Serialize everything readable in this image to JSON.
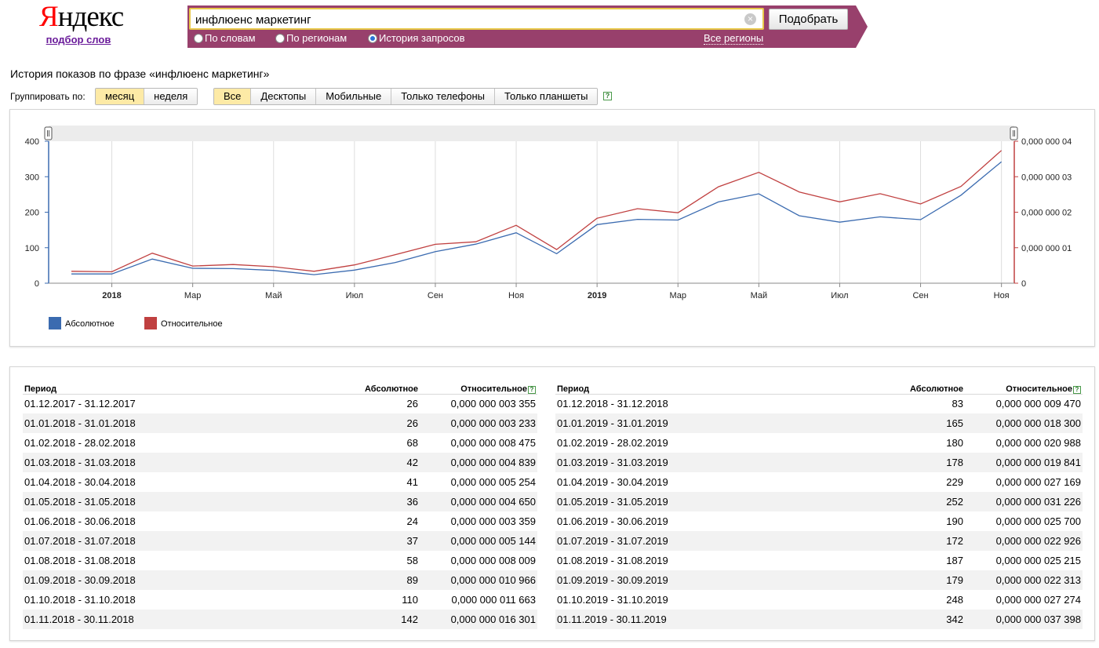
{
  "logo": {
    "brand_first": "Я",
    "brand_rest": "ндекс",
    "subtitle": "подбор слов"
  },
  "search": {
    "value": "инфлюенс маркетинг",
    "submit_label": "Подобрать",
    "clear_icon": "clear-icon",
    "modes": [
      {
        "label": "По словам",
        "selected": false
      },
      {
        "label": "По регионам",
        "selected": false
      },
      {
        "label": "История запросов",
        "selected": true
      }
    ],
    "regions_link": "Все регионы"
  },
  "page_title": "История показов по фразе «инфлюенс маркетинг»",
  "grouping": {
    "label": "Группировать по:",
    "options": [
      "месяц",
      "неделя"
    ],
    "selected": "месяц"
  },
  "devices": {
    "options": [
      "Все",
      "Десктопы",
      "Мобильные",
      "Только телефоны",
      "Только планшеты"
    ],
    "selected": "Все",
    "help": "?"
  },
  "colors": {
    "absolute": "#3b6bb0",
    "relative": "#c04040",
    "brand_band": "#98406c",
    "active_button": "#fdeaa6"
  },
  "chart_data": {
    "type": "line",
    "x": [
      "12.2017",
      "01.2018",
      "02.2018",
      "03.2018",
      "04.2018",
      "05.2018",
      "06.2018",
      "07.2018",
      "08.2018",
      "09.2018",
      "10.2018",
      "11.2018",
      "12.2018",
      "01.2019",
      "02.2019",
      "03.2019",
      "04.2019",
      "05.2019",
      "06.2019",
      "07.2019",
      "08.2019",
      "09.2019",
      "10.2019",
      "11.2019"
    ],
    "x_tick_labels": [
      {
        "label": "2018",
        "index": 1,
        "bold": true
      },
      {
        "label": "Мар",
        "index": 3
      },
      {
        "label": "Май",
        "index": 5
      },
      {
        "label": "Июл",
        "index": 7
      },
      {
        "label": "Сен",
        "index": 9
      },
      {
        "label": "Ноя",
        "index": 11
      },
      {
        "label": "2019",
        "index": 13,
        "bold": true
      },
      {
        "label": "Мар",
        "index": 15
      },
      {
        "label": "Май",
        "index": 17
      },
      {
        "label": "Июл",
        "index": 19
      },
      {
        "label": "Сен",
        "index": 21
      },
      {
        "label": "Ноя",
        "index": 23
      }
    ],
    "y_left": {
      "ticks": [
        "0",
        "100",
        "200",
        "300",
        "400"
      ],
      "ylim": [
        0,
        400
      ]
    },
    "y_right": {
      "ticks": [
        "0",
        "0,000 000 01",
        "0,000 000 02",
        "0,000 000 03",
        "0,000 000 04"
      ],
      "ylim": [
        0,
        4e-08
      ]
    },
    "series": [
      {
        "name": "Абсолютное",
        "axis": "left",
        "color": "#3b6bb0",
        "values": [
          26,
          26,
          68,
          42,
          41,
          36,
          24,
          37,
          58,
          89,
          110,
          142,
          83,
          165,
          180,
          178,
          229,
          252,
          190,
          172,
          187,
          179,
          248,
          342
        ]
      },
      {
        "name": "Относительное",
        "axis": "right",
        "color": "#c04040",
        "values": [
          3.355e-09,
          3.233e-09,
          8.475e-09,
          4.839e-09,
          5.254e-09,
          4.65e-09,
          3.359e-09,
          5.144e-09,
          8.009e-09,
          1.0966e-08,
          1.1663e-08,
          1.6301e-08,
          9.47e-09,
          1.83e-08,
          2.0988e-08,
          1.9841e-08,
          2.7169e-08,
          3.1226e-08,
          2.57e-08,
          2.2926e-08,
          2.5215e-08,
          2.2313e-08,
          2.7274e-08,
          3.7398e-08
        ]
      }
    ],
    "grid": true,
    "legend_position": "bottom-left"
  },
  "table": {
    "headers": {
      "period": "Период",
      "absolute": "Абсолютное",
      "relative": "Относительное"
    },
    "left": [
      [
        "01.12.2017 - 31.12.2017",
        "26",
        "0,000 000 003 355"
      ],
      [
        "01.01.2018 - 31.01.2018",
        "26",
        "0,000 000 003 233"
      ],
      [
        "01.02.2018 - 28.02.2018",
        "68",
        "0,000 000 008 475"
      ],
      [
        "01.03.2018 - 31.03.2018",
        "42",
        "0,000 000 004 839"
      ],
      [
        "01.04.2018 - 30.04.2018",
        "41",
        "0,000 000 005 254"
      ],
      [
        "01.05.2018 - 31.05.2018",
        "36",
        "0,000 000 004 650"
      ],
      [
        "01.06.2018 - 30.06.2018",
        "24",
        "0,000 000 003 359"
      ],
      [
        "01.07.2018 - 31.07.2018",
        "37",
        "0,000 000 005 144"
      ],
      [
        "01.08.2018 - 31.08.2018",
        "58",
        "0,000 000 008 009"
      ],
      [
        "01.09.2018 - 30.09.2018",
        "89",
        "0,000 000 010 966"
      ],
      [
        "01.10.2018 - 31.10.2018",
        "110",
        "0,000 000 011 663"
      ],
      [
        "01.11.2018 - 30.11.2018",
        "142",
        "0,000 000 016 301"
      ]
    ],
    "right": [
      [
        "01.12.2018 - 31.12.2018",
        "83",
        "0,000 000 009 470"
      ],
      [
        "01.01.2019 - 31.01.2019",
        "165",
        "0,000 000 018 300"
      ],
      [
        "01.02.2019 - 28.02.2019",
        "180",
        "0,000 000 020 988"
      ],
      [
        "01.03.2019 - 31.03.2019",
        "178",
        "0,000 000 019 841"
      ],
      [
        "01.04.2019 - 30.04.2019",
        "229",
        "0,000 000 027 169"
      ],
      [
        "01.05.2019 - 31.05.2019",
        "252",
        "0,000 000 031 226"
      ],
      [
        "01.06.2019 - 30.06.2019",
        "190",
        "0,000 000 025 700"
      ],
      [
        "01.07.2019 - 31.07.2019",
        "172",
        "0,000 000 022 926"
      ],
      [
        "01.08.2019 - 31.08.2019",
        "187",
        "0,000 000 025 215"
      ],
      [
        "01.09.2019 - 30.09.2019",
        "179",
        "0,000 000 022 313"
      ],
      [
        "01.10.2019 - 31.10.2019",
        "248",
        "0,000 000 027 274"
      ],
      [
        "01.11.2019 - 30.11.2019",
        "342",
        "0,000 000 037 398"
      ]
    ]
  }
}
